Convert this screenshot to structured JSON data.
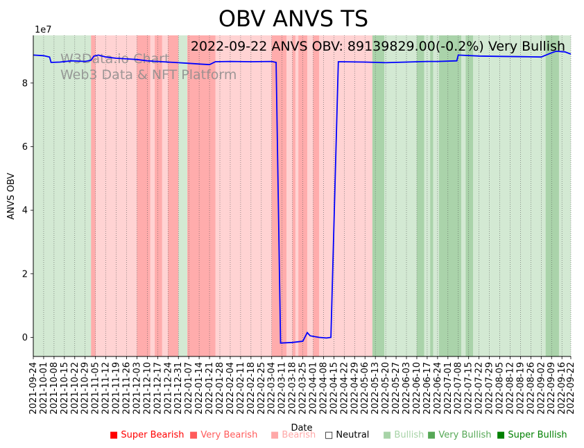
{
  "chart_data": {
    "type": "line",
    "title": "OBV ANVS TS",
    "subtitle": "2022-09-22 ANVS OBV: 89139829.00(-0.2%) Very Bullish",
    "watermark_lines": [
      "W3Data.io Chart",
      "Web3 Data & NFT Platform"
    ],
    "xlabel": "Date",
    "ylabel": "ANVS OBV",
    "y_multiplier_label": "1e7",
    "y_ticks": [
      0,
      2,
      4,
      6,
      8
    ],
    "ylim": [
      -0.6,
      9.5
    ],
    "x_start": "2021-09-24",
    "x_end": "2022-09-22",
    "x_ticks": [
      "2021-09-24",
      "2021-10-01",
      "2021-10-08",
      "2021-10-15",
      "2021-10-22",
      "2021-10-29",
      "2021-11-05",
      "2021-11-12",
      "2021-11-19",
      "2021-11-26",
      "2021-12-03",
      "2021-12-10",
      "2021-12-17",
      "2021-12-24",
      "2021-12-31",
      "2022-01-07",
      "2022-01-14",
      "2022-01-21",
      "2022-01-28",
      "2022-02-04",
      "2022-02-11",
      "2022-02-18",
      "2022-02-25",
      "2022-03-04",
      "2022-03-11",
      "2022-03-18",
      "2022-03-25",
      "2022-04-01",
      "2022-04-08",
      "2022-04-15",
      "2022-04-22",
      "2022-04-29",
      "2022-05-06",
      "2022-05-13",
      "2022-05-20",
      "2022-05-27",
      "2022-06-03",
      "2022-06-10",
      "2022-06-17",
      "2022-06-24",
      "2022-07-01",
      "2022-07-08",
      "2022-07-15",
      "2022-07-22",
      "2022-07-29",
      "2022-08-05",
      "2022-08-12",
      "2022-08-19",
      "2022-08-26",
      "2022-09-02",
      "2022-09-09",
      "2022-09-16",
      "2022-09-22"
    ],
    "series": [
      {
        "color": "#0000ff",
        "points": [
          [
            "2021-09-24",
            8.88
          ],
          [
            "2021-10-01",
            8.86
          ],
          [
            "2021-10-05",
            8.82
          ],
          [
            "2021-10-06",
            8.65
          ],
          [
            "2021-10-12",
            8.66
          ],
          [
            "2021-10-20",
            8.7
          ],
          [
            "2021-10-29",
            8.68
          ],
          [
            "2021-11-02",
            8.72
          ],
          [
            "2021-11-04",
            8.85
          ],
          [
            "2021-11-07",
            8.88
          ],
          [
            "2021-11-12",
            8.82
          ],
          [
            "2021-11-19",
            8.78
          ],
          [
            "2021-11-26",
            8.76
          ],
          [
            "2021-12-03",
            8.74
          ],
          [
            "2021-12-10",
            8.7
          ],
          [
            "2021-12-17",
            8.68
          ],
          [
            "2021-12-24",
            8.66
          ],
          [
            "2021-12-31",
            8.64
          ],
          [
            "2022-01-07",
            8.62
          ],
          [
            "2022-01-14",
            8.6
          ],
          [
            "2022-01-21",
            8.58
          ],
          [
            "2022-01-25",
            8.67
          ],
          [
            "2022-02-04",
            8.68
          ],
          [
            "2022-02-18",
            8.67
          ],
          [
            "2022-03-04",
            8.68
          ],
          [
            "2022-03-07",
            8.65
          ],
          [
            "2022-03-10",
            -0.18
          ],
          [
            "2022-03-18",
            -0.16
          ],
          [
            "2022-03-25",
            -0.12
          ],
          [
            "2022-03-28",
            0.15
          ],
          [
            "2022-03-30",
            0.05
          ],
          [
            "2022-04-05",
            0.0
          ],
          [
            "2022-04-10",
            -0.02
          ],
          [
            "2022-04-13",
            0.0
          ],
          [
            "2022-04-18",
            8.67
          ],
          [
            "2022-05-06",
            8.66
          ],
          [
            "2022-05-20",
            8.64
          ],
          [
            "2022-06-03",
            8.66
          ],
          [
            "2022-06-17",
            8.68
          ],
          [
            "2022-06-24",
            8.68
          ],
          [
            "2022-07-07",
            8.7
          ],
          [
            "2022-07-08",
            8.88
          ],
          [
            "2022-07-22",
            8.85
          ],
          [
            "2022-08-05",
            8.84
          ],
          [
            "2022-08-19",
            8.83
          ],
          [
            "2022-09-02",
            8.82
          ],
          [
            "2022-09-09",
            8.95
          ],
          [
            "2022-09-12",
            9.0
          ],
          [
            "2022-09-18",
            8.98
          ],
          [
            "2022-09-22",
            8.91
          ]
        ]
      }
    ],
    "sentiment_colors": {
      "Super Bearish": "#ff0000",
      "Very Bearish": "#ff5a5a",
      "Bearish": "#ffa8a8",
      "Neutral": "#000000",
      "Bullish": "#a7d3a7",
      "Very Bullish": "#56a856",
      "Super Bullish": "#008000"
    },
    "bands": [
      {
        "start": "2021-09-24",
        "end": "2021-11-02",
        "sentiment": "Bullish"
      },
      {
        "start": "2021-11-02",
        "end": "2021-11-05",
        "sentiment": "Very Bearish"
      },
      {
        "start": "2021-11-05",
        "end": "2021-12-03",
        "sentiment": "Bearish"
      },
      {
        "start": "2021-12-03",
        "end": "2021-12-12",
        "sentiment": "Very Bearish"
      },
      {
        "start": "2021-12-12",
        "end": "2021-12-15",
        "sentiment": "Bearish"
      },
      {
        "start": "2021-12-15",
        "end": "2021-12-20",
        "sentiment": "Very Bearish"
      },
      {
        "start": "2021-12-20",
        "end": "2021-12-24",
        "sentiment": "Bearish"
      },
      {
        "start": "2021-12-24",
        "end": "2021-12-31",
        "sentiment": "Very Bearish"
      },
      {
        "start": "2021-12-31",
        "end": "2022-01-06",
        "sentiment": "Bullish"
      },
      {
        "start": "2022-01-06",
        "end": "2022-01-25",
        "sentiment": "Very Bearish"
      },
      {
        "start": "2022-01-25",
        "end": "2022-01-31",
        "sentiment": "Bearish"
      },
      {
        "start": "2022-01-31",
        "end": "2022-03-04",
        "sentiment": "Bearish"
      },
      {
        "start": "2022-03-04",
        "end": "2022-03-14",
        "sentiment": "Very Bearish"
      },
      {
        "start": "2022-03-14",
        "end": "2022-03-18",
        "sentiment": "Bearish"
      },
      {
        "start": "2022-03-18",
        "end": "2022-03-20",
        "sentiment": "Very Bearish"
      },
      {
        "start": "2022-03-20",
        "end": "2022-03-22",
        "sentiment": "Bearish"
      },
      {
        "start": "2022-03-22",
        "end": "2022-03-28",
        "sentiment": "Very Bearish"
      },
      {
        "start": "2022-03-28",
        "end": "2022-04-01",
        "sentiment": "Bearish"
      },
      {
        "start": "2022-04-01",
        "end": "2022-04-05",
        "sentiment": "Very Bearish"
      },
      {
        "start": "2022-04-05",
        "end": "2022-05-11",
        "sentiment": "Bearish"
      },
      {
        "start": "2022-05-11",
        "end": "2022-05-19",
        "sentiment": "Very Bullish"
      },
      {
        "start": "2022-05-19",
        "end": "2022-06-10",
        "sentiment": "Bullish"
      },
      {
        "start": "2022-06-10",
        "end": "2022-06-15",
        "sentiment": "Very Bullish"
      },
      {
        "start": "2022-06-15",
        "end": "2022-06-19",
        "sentiment": "Bullish"
      },
      {
        "start": "2022-06-19",
        "end": "2022-06-21",
        "sentiment": "Very Bullish"
      },
      {
        "start": "2022-06-21",
        "end": "2022-06-25",
        "sentiment": "Bullish"
      },
      {
        "start": "2022-06-25",
        "end": "2022-07-10",
        "sentiment": "Very Bullish"
      },
      {
        "start": "2022-07-10",
        "end": "2022-07-13",
        "sentiment": "Bullish"
      },
      {
        "start": "2022-07-13",
        "end": "2022-07-18",
        "sentiment": "Very Bullish"
      },
      {
        "start": "2022-07-18",
        "end": "2022-07-30",
        "sentiment": "Bullish"
      },
      {
        "start": "2022-07-30",
        "end": "2022-09-05",
        "sentiment": "Bullish"
      },
      {
        "start": "2022-09-05",
        "end": "2022-09-14",
        "sentiment": "Very Bullish"
      },
      {
        "start": "2022-09-14",
        "end": "2022-09-22",
        "sentiment": "Bullish"
      }
    ],
    "legend": [
      {
        "label": "Super Bearish",
        "symbol": "■",
        "color": "#ff0000"
      },
      {
        "label": "Very Bearish",
        "symbol": "■",
        "color": "#ff5a5a"
      },
      {
        "label": "Bearish",
        "symbol": "■",
        "color": "#ffa8a8"
      },
      {
        "label": "Neutral",
        "symbol": "□",
        "color": "#000000"
      },
      {
        "label": "Bullish",
        "symbol": "■",
        "color": "#a7d3a7"
      },
      {
        "label": "Very Bullish",
        "symbol": "■",
        "color": "#56a856"
      },
      {
        "label": "Super Bullish",
        "symbol": "■",
        "color": "#008000"
      }
    ],
    "grid": "vertical-dotted",
    "legend_placement": "bottom"
  }
}
